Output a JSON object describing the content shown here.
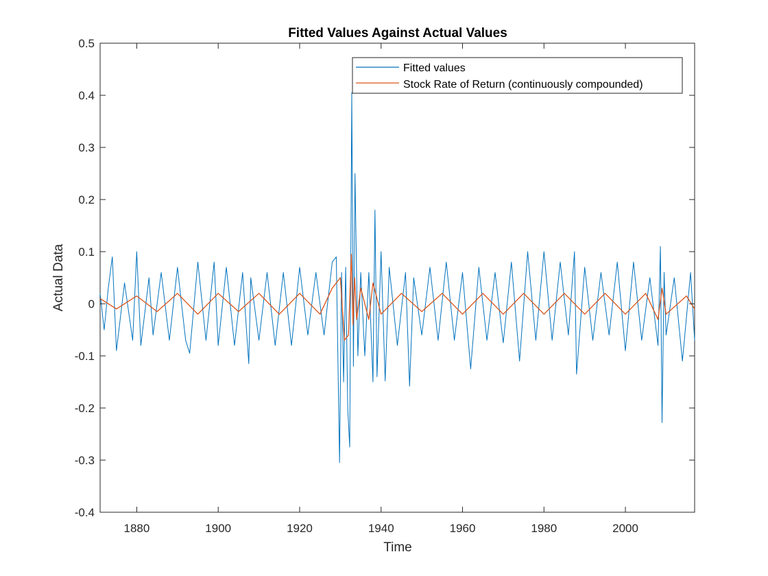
{
  "chart_data": {
    "type": "line",
    "title": "Fitted Values Against Actual Values",
    "xlabel": "Time",
    "ylabel": "Actual Data",
    "xlim": [
      1871,
      2017
    ],
    "ylim": [
      -0.4,
      0.5
    ],
    "xticks": [
      1880,
      1900,
      1920,
      1940,
      1960,
      1980,
      2000
    ],
    "yticks": [
      -0.4,
      -0.3,
      -0.2,
      -0.1,
      0,
      0.1,
      0.2,
      0.3,
      0.4,
      0.5
    ],
    "ytick_labels": [
      "-0.4",
      "-0.3",
      "-0.2",
      "-0.1",
      "0",
      "0.1",
      "0.2",
      "0.3",
      "0.4",
      "0.5"
    ],
    "grid": false,
    "legend_position": "top-right",
    "series": [
      {
        "name": "Fitted values",
        "color": "#0072bd",
        "x": [
          1871,
          1872,
          1873,
          1874,
          1875,
          1877,
          1879,
          1880,
          1881,
          1883,
          1884,
          1886,
          1888,
          1890,
          1892,
          1893,
          1895,
          1897,
          1899,
          1900,
          1902,
          1904,
          1906,
          1907.5,
          1908,
          1910,
          1912,
          1914,
          1916,
          1918,
          1920,
          1922,
          1924,
          1926,
          1928,
          1929,
          1929.8,
          1930.3,
          1930.8,
          1931.3,
          1931.8,
          1932.3,
          1932.8,
          1933.2,
          1933.6,
          1934.3,
          1935,
          1936,
          1937,
          1938,
          1938.5,
          1939,
          1940,
          1941,
          1942,
          1944,
          1946,
          1947,
          1948,
          1950,
          1952,
          1954,
          1956,
          1958,
          1960,
          1962,
          1964,
          1966,
          1968,
          1970,
          1972,
          1974,
          1976,
          1978,
          1980,
          1982,
          1984,
          1986,
          1987.5,
          1988,
          1990,
          1992,
          1994,
          1996,
          1998,
          2000,
          2002,
          2004,
          2006,
          2008,
          2008.6,
          2009,
          2009.5,
          2010,
          2012,
          2014,
          2016,
          2017
        ],
        "values": [
          0.02,
          -0.05,
          0.03,
          0.09,
          -0.09,
          0.04,
          -0.07,
          0.1,
          -0.08,
          0.05,
          -0.06,
          0.06,
          -0.07,
          0.07,
          -0.07,
          -0.095,
          0.08,
          -0.07,
          0.08,
          -0.08,
          0.07,
          -0.08,
          0.06,
          -0.115,
          0.05,
          -0.07,
          0.06,
          -0.08,
          0.06,
          -0.08,
          0.07,
          -0.06,
          0.06,
          -0.06,
          0.08,
          0.09,
          -0.305,
          0.06,
          -0.15,
          0.07,
          -0.2,
          -0.275,
          0.405,
          -0.12,
          0.25,
          -0.1,
          0.06,
          -0.1,
          0.06,
          -0.15,
          0.18,
          -0.14,
          0.1,
          -0.148,
          0.07,
          -0.08,
          0.06,
          -0.158,
          0.05,
          -0.06,
          0.07,
          -0.07,
          0.08,
          -0.07,
          0.06,
          -0.125,
          0.07,
          -0.07,
          0.06,
          -0.075,
          0.08,
          -0.11,
          0.1,
          -0.07,
          0.1,
          -0.07,
          0.08,
          -0.06,
          0.1,
          -0.135,
          0.07,
          -0.07,
          0.06,
          -0.06,
          0.08,
          -0.09,
          0.08,
          -0.07,
          0.05,
          -0.08,
          0.11,
          -0.228,
          0.06,
          -0.06,
          0.05,
          -0.11,
          0.06,
          -0.07
        ]
      },
      {
        "name": "Stock Rate of Return (continuously compounded)",
        "color": "#d95319",
        "x": [
          1871,
          1875,
          1880,
          1885,
          1890,
          1895,
          1900,
          1905,
          1910,
          1915,
          1920,
          1925,
          1928,
          1930,
          1931,
          1932,
          1932.7,
          1933.1,
          1933.5,
          1934,
          1935,
          1937,
          1938,
          1940,
          1945,
          1950,
          1955,
          1960,
          1965,
          1970,
          1975,
          1980,
          1985,
          1990,
          1995,
          2000,
          2005,
          2008,
          2009,
          2010,
          2015,
          2017
        ],
        "values": [
          0.01,
          -0.01,
          0.015,
          -0.015,
          0.02,
          -0.02,
          0.02,
          -0.015,
          0.02,
          -0.02,
          0.02,
          -0.02,
          0.03,
          0.05,
          -0.07,
          -0.06,
          0.095,
          -0.04,
          0.05,
          -0.03,
          0.03,
          -0.03,
          0.04,
          -0.02,
          0.02,
          -0.015,
          0.02,
          -0.02,
          0.02,
          -0.02,
          0.02,
          -0.02,
          0.02,
          -0.02,
          0.02,
          -0.02,
          0.02,
          -0.03,
          0.03,
          -0.02,
          0.015,
          -0.01
        ]
      }
    ]
  }
}
